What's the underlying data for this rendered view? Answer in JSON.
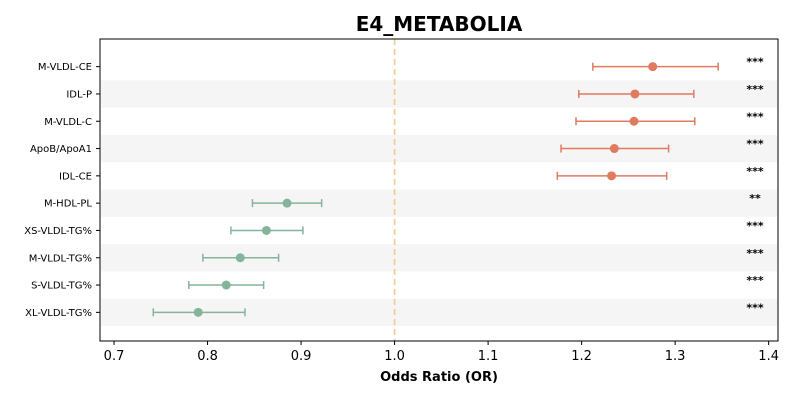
{
  "chart_data": {
    "type": "forest",
    "title": "E4_METABOLIA",
    "xlabel": "Odds Ratio (OR)",
    "ylabel": "",
    "xlim": [
      0.685,
      1.41
    ],
    "xticks": [
      0.7,
      0.8,
      0.9,
      1.0,
      1.1,
      1.2,
      1.3,
      1.4
    ],
    "xtick_labels": [
      "0.7",
      "0.8",
      "0.9",
      "1.0",
      "1.1",
      "1.2",
      "1.3",
      "1.4"
    ],
    "reference_line": 1.0,
    "rows": [
      {
        "label": "M-VLDL-CE",
        "or": 1.276,
        "lower": 1.212,
        "upper": 1.346,
        "sig": "***"
      },
      {
        "label": "IDL-P",
        "or": 1.257,
        "lower": 1.197,
        "upper": 1.32,
        "sig": "***"
      },
      {
        "label": "M-VLDL-C",
        "or": 1.256,
        "lower": 1.194,
        "upper": 1.321,
        "sig": "***"
      },
      {
        "label": "ApoB/ApoA1",
        "or": 1.235,
        "lower": 1.178,
        "upper": 1.293,
        "sig": "***"
      },
      {
        "label": "IDL-CE",
        "or": 1.232,
        "lower": 1.174,
        "upper": 1.291,
        "sig": "***"
      },
      {
        "label": "M-HDL-PL",
        "or": 0.885,
        "lower": 0.848,
        "upper": 0.922,
        "sig": "**"
      },
      {
        "label": "XS-VLDL-TG%",
        "or": 0.863,
        "lower": 0.825,
        "upper": 0.902,
        "sig": "***"
      },
      {
        "label": "M-VLDL-TG%",
        "or": 0.835,
        "lower": 0.795,
        "upper": 0.876,
        "sig": "***"
      },
      {
        "label": "S-VLDL-TG%",
        "or": 0.82,
        "lower": 0.78,
        "upper": 0.86,
        "sig": "***"
      },
      {
        "label": "XL-VLDL-TG%",
        "or": 0.79,
        "lower": 0.742,
        "upper": 0.84,
        "sig": "***"
      }
    ],
    "colors": {
      "positive": "#e07b5f",
      "negative": "#84b59b",
      "reference": "#f5c98a",
      "band": "#f5f5f5"
    },
    "grid": false,
    "legend": "none"
  }
}
